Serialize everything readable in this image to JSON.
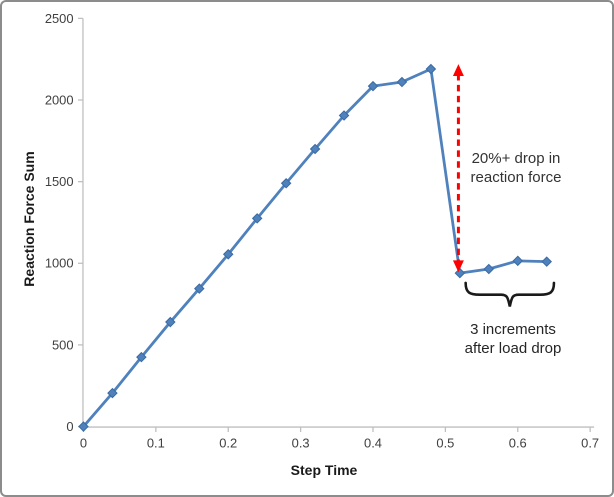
{
  "chart_data": {
    "type": "line",
    "title": "",
    "xlabel": "Step Time",
    "ylabel": "Reaction Force Sum",
    "xlim": [
      0,
      0.7
    ],
    "ylim": [
      0,
      2500
    ],
    "grid": "off",
    "legend": "none",
    "marker": "diamond",
    "x_ticks": [
      0,
      0.1,
      0.2,
      0.3,
      0.4,
      0.5,
      0.6,
      0.7
    ],
    "x_tick_labels": [
      "0",
      "0.1",
      "0.2",
      "0.3",
      "0.4",
      "0.5",
      "0.6",
      "0.7"
    ],
    "y_ticks": [
      0,
      500,
      1000,
      1500,
      2000,
      2500
    ],
    "y_tick_labels": [
      "0",
      "500",
      "1000",
      "1500",
      "2000",
      "2500"
    ],
    "series": [
      {
        "name": "Reaction Force Sum",
        "x": [
          0,
          0.04,
          0.08,
          0.12,
          0.16,
          0.2,
          0.24,
          0.28,
          0.32,
          0.36,
          0.4,
          0.44,
          0.48,
          0.52,
          0.56,
          0.6,
          0.64
        ],
        "y": [
          0,
          205,
          425,
          640,
          845,
          1055,
          1275,
          1490,
          1700,
          1905,
          2085,
          2110,
          2190,
          940,
          965,
          1015,
          1010
        ]
      }
    ],
    "annotations": {
      "drop_arrow": {
        "type": "double-headed-dashed-arrow",
        "x": 0.518,
        "value_top": 2220,
        "value_bottom": 945,
        "color": "#FF0000"
      },
      "drop_label": {
        "line1": "20%+ drop in",
        "line2": "reaction force"
      },
      "brace": {
        "x_start": 0.528,
        "x_end": 0.65,
        "value_top": 880,
        "value_bar": 820,
        "value_cusp": 735,
        "color": "#1A1A1A"
      },
      "increments_label": {
        "line1": "3 increments",
        "line2": "after load drop"
      }
    },
    "colors": {
      "series": "#4F81BD",
      "marker_edge": "#3B6AA0",
      "axis": "#BFBFBF",
      "tick_text": "#404040",
      "title_text": "#1A1A1A",
      "annotation_text": "#333333",
      "arrow": "#FF0000",
      "border": "#8C8C8C"
    }
  }
}
